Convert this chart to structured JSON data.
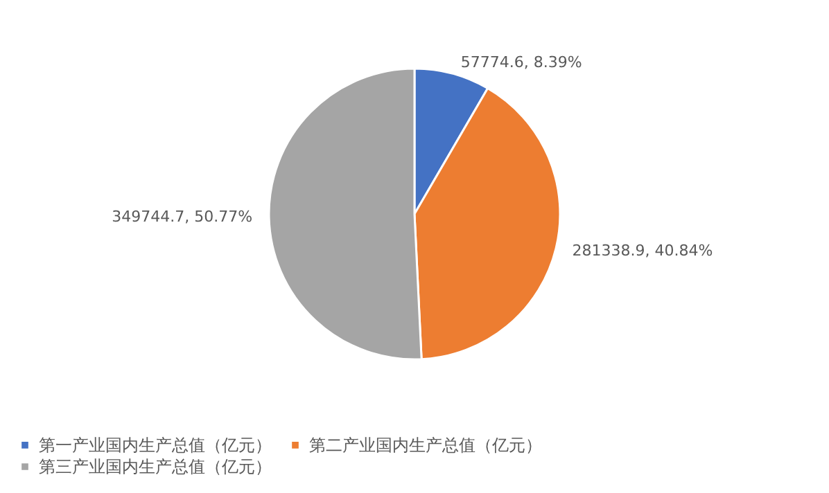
{
  "chart_data": {
    "type": "pie",
    "categories": [
      "第一产业国内生产总值（亿元）",
      "第二产业国内生产总值（亿元）",
      "第三产业国内生产总值（亿元）"
    ],
    "values": [
      57774.6,
      281338.9,
      349744.7
    ],
    "colors": [
      "#4472c4",
      "#ed7d31",
      "#a5a5a5"
    ],
    "value_labels": [
      "57774.6, 8.39%",
      "281338.9, 40.84%",
      "349744.7, 50.77%"
    ],
    "legend": "bottom"
  }
}
